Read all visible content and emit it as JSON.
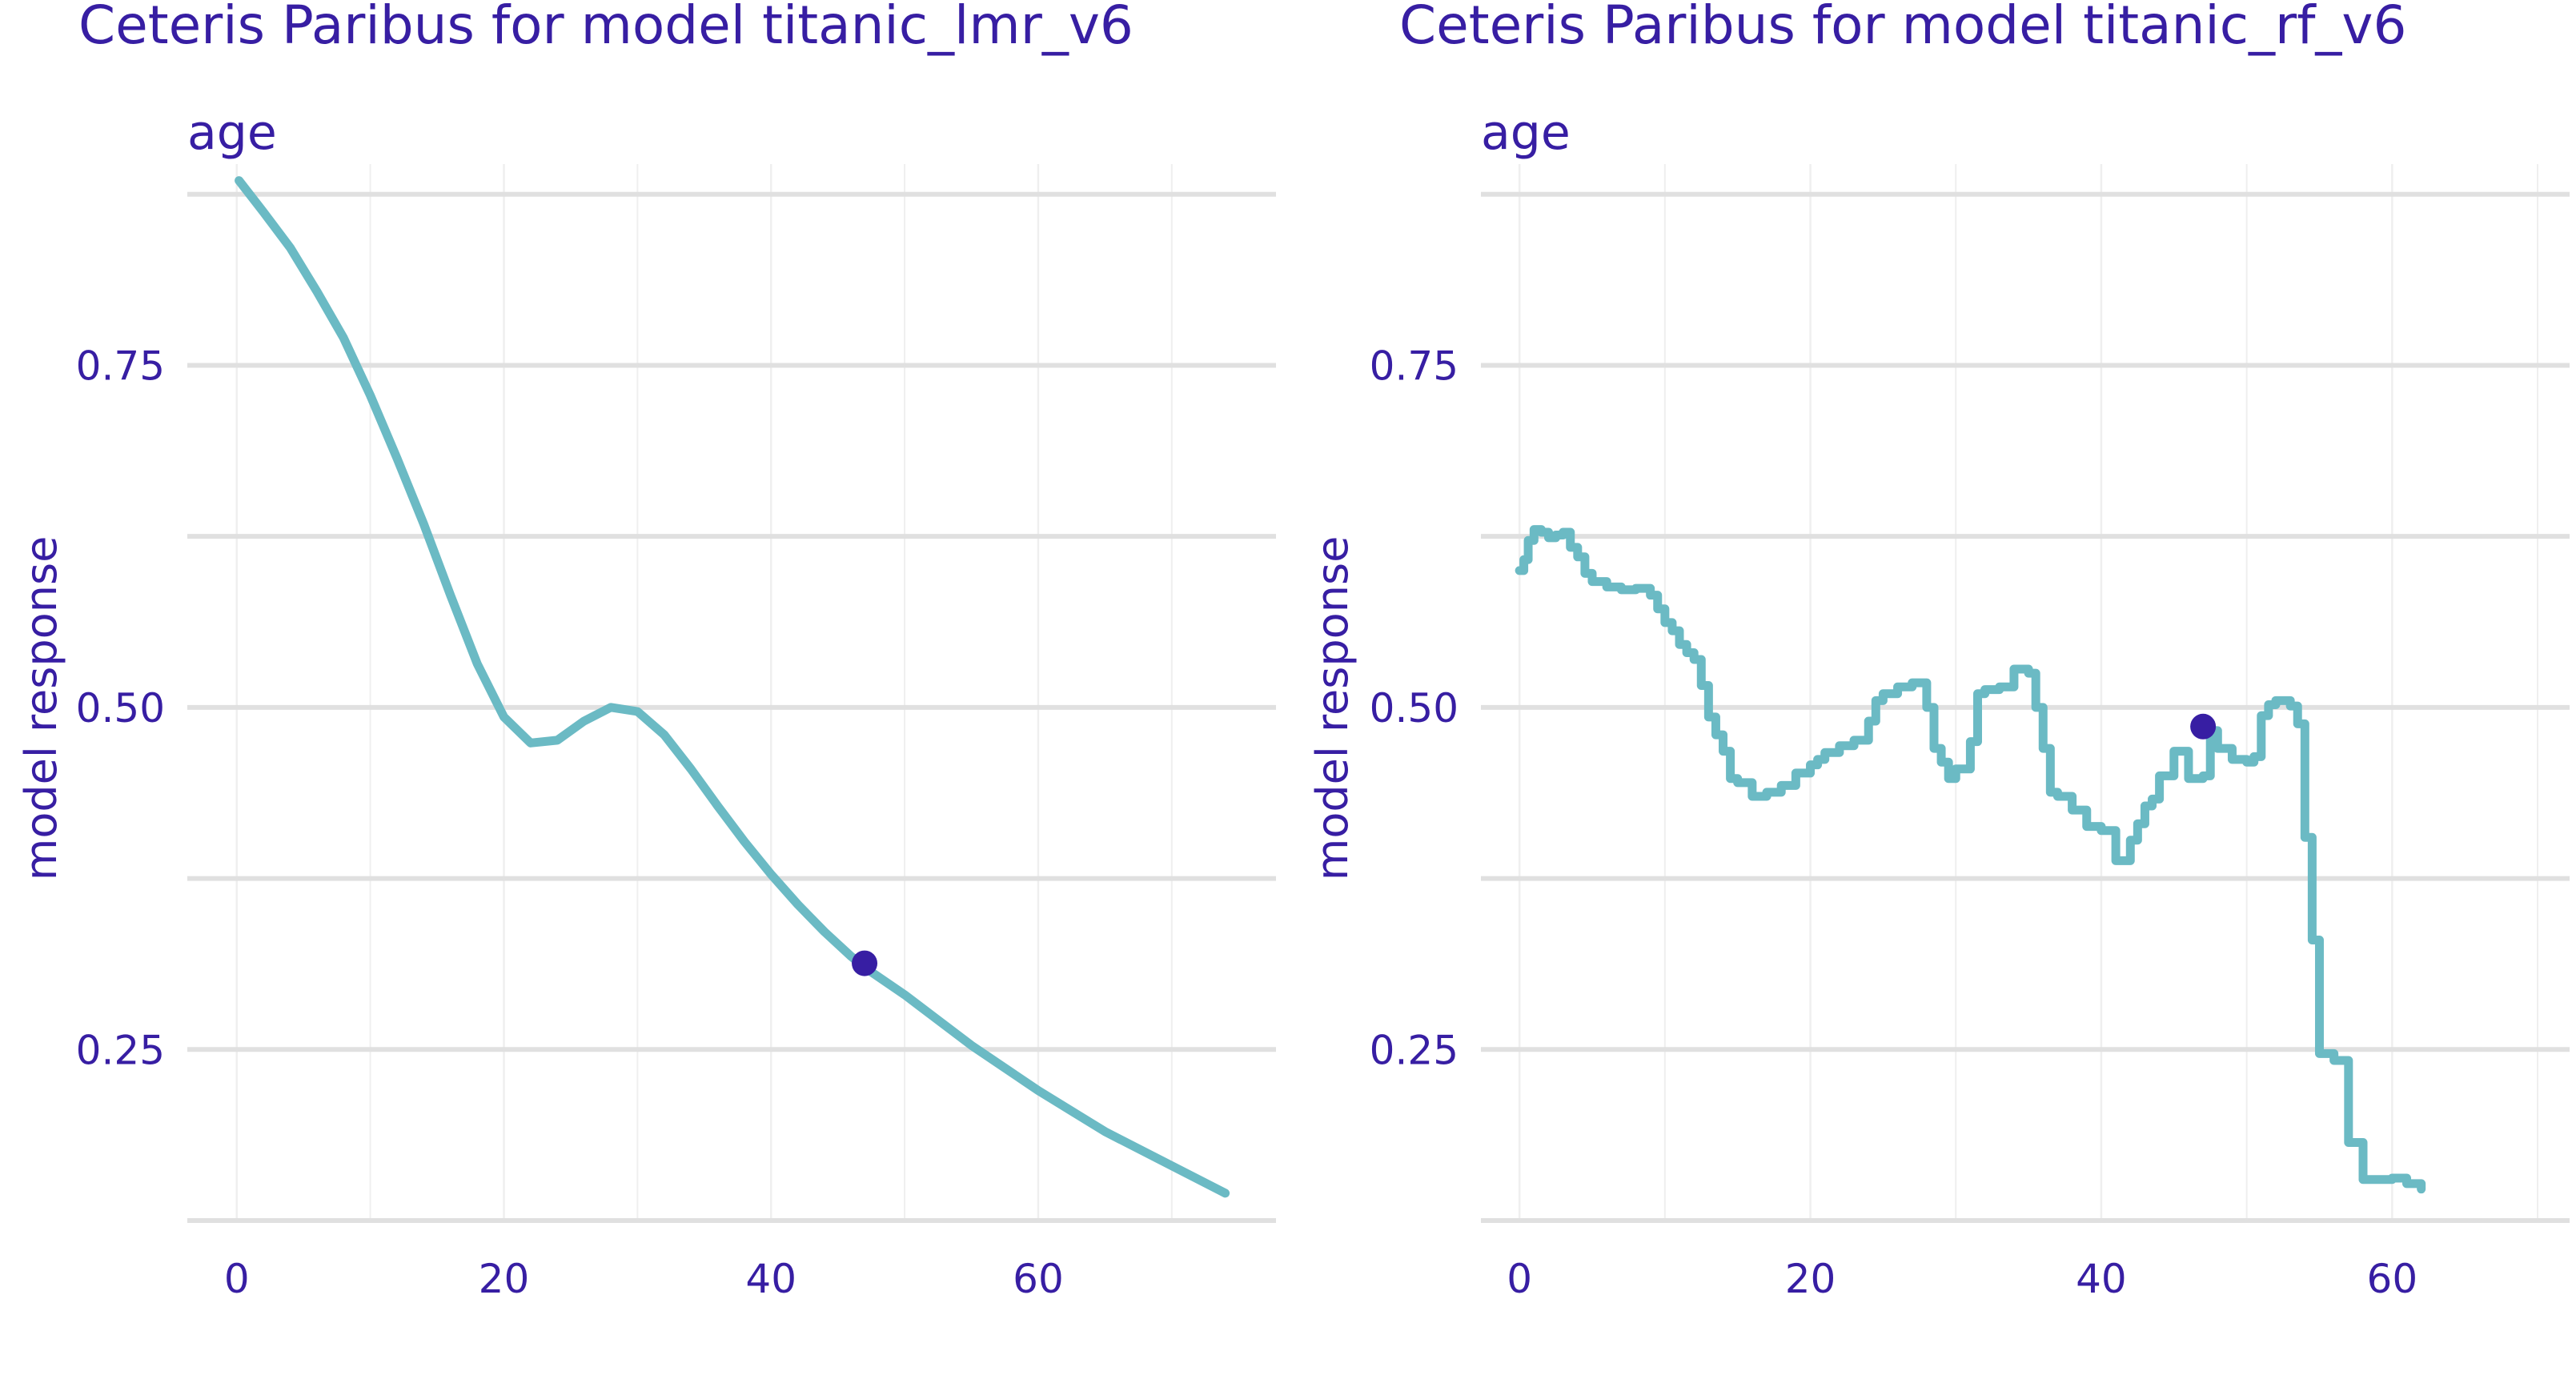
{
  "theme": {
    "text_color": "#371ea3",
    "line_color": "#6bbac4",
    "point_color": "#371ea3",
    "major_grid_color": "#e0e0e0",
    "minor_grid_color": "#efefef",
    "background": "#ffffff"
  },
  "chart_data": [
    {
      "type": "line",
      "title": "Ceteris Paribus for model titanic_lmr_v6",
      "subtitle": "age",
      "xlabel": "",
      "ylabel": "model response",
      "xlim": [
        -3.7,
        77.8
      ],
      "ylim": [
        0.125,
        0.9
      ],
      "x_ticks": [
        0,
        20,
        40,
        60
      ],
      "x_tick_labels": [
        "0",
        "20",
        "40",
        "60"
      ],
      "x_minor_gridlines": [
        10,
        30,
        50,
        70
      ],
      "y_ticks": [
        0.25,
        0.5,
        0.75
      ],
      "y_tick_labels": [
        "0.25",
        "0.50",
        "0.75"
      ],
      "y_minor_gridlines": [
        0.125,
        0.375,
        0.625,
        0.875
      ],
      "grid": true,
      "legend": "none",
      "series": [
        {
          "x": [
            0.17,
            2,
            4,
            6,
            8,
            10,
            12,
            14,
            16,
            18,
            20,
            22,
            24,
            26,
            28,
            30,
            32,
            34,
            36,
            38,
            40,
            42,
            44,
            46,
            47,
            50,
            55,
            60,
            65,
            70,
            74
          ],
          "y": [
            0.885,
            0.862,
            0.836,
            0.804,
            0.77,
            0.728,
            0.682,
            0.634,
            0.582,
            0.532,
            0.493,
            0.474,
            0.476,
            0.49,
            0.5,
            0.497,
            0.48,
            0.455,
            0.428,
            0.402,
            0.378,
            0.356,
            0.336,
            0.318,
            0.31,
            0.29,
            0.253,
            0.22,
            0.19,
            0.165,
            0.145
          ]
        }
      ],
      "observation": {
        "x": 47,
        "y": 0.313
      }
    },
    {
      "type": "line",
      "title": "Ceteris Paribus for model titanic_rf_v6",
      "subtitle": "age",
      "xlabel": "",
      "ylabel": "model response",
      "xlim": [
        -2.65,
        72.2
      ],
      "ylim": [
        0.125,
        0.9
      ],
      "x_ticks": [
        0,
        20,
        40,
        60
      ],
      "x_tick_labels": [
        "0",
        "20",
        "40",
        "60"
      ],
      "x_minor_gridlines": [
        10,
        30,
        50,
        70
      ],
      "y_ticks": [
        0.25,
        0.5,
        0.75
      ],
      "y_tick_labels": [
        "0.25",
        "0.50",
        "0.75"
      ],
      "y_minor_gridlines": [
        0.125,
        0.375,
        0.625,
        0.875
      ],
      "grid": true,
      "legend": "none",
      "series": [
        {
          "step": true,
          "x": [
            0,
            0.3,
            0.6,
            1,
            1.5,
            2,
            2.5,
            3,
            3.5,
            4,
            4.5,
            5,
            6,
            7,
            8,
            9,
            9.5,
            10,
            10.5,
            11,
            11.5,
            12,
            12.5,
            13,
            13.5,
            14,
            14.5,
            15,
            16,
            17,
            18,
            19,
            20,
            20.5,
            21,
            22,
            23,
            24,
            24.5,
            25,
            26,
            27,
            28,
            28.5,
            29,
            29.5,
            30,
            31,
            31.5,
            32,
            33,
            34,
            35,
            35.5,
            36,
            36.5,
            37,
            38,
            39,
            40,
            41,
            42,
            42.5,
            43,
            43.5,
            44,
            45,
            46,
            47,
            47.5,
            48,
            49,
            50,
            50.5,
            51,
            51.5,
            52,
            53,
            53.5,
            54,
            54.5,
            55,
            56,
            57,
            58,
            59,
            60,
            61,
            62
          ],
          "y": [
            0.6,
            0.608,
            0.622,
            0.63,
            0.628,
            0.624,
            0.626,
            0.628,
            0.617,
            0.61,
            0.598,
            0.592,
            0.588,
            0.586,
            0.587,
            0.582,
            0.572,
            0.562,
            0.556,
            0.546,
            0.54,
            0.535,
            0.516,
            0.493,
            0.48,
            0.468,
            0.448,
            0.445,
            0.435,
            0.438,
            0.443,
            0.452,
            0.458,
            0.462,
            0.467,
            0.472,
            0.476,
            0.49,
            0.505,
            0.51,
            0.515,
            0.518,
            0.5,
            0.47,
            0.46,
            0.448,
            0.455,
            0.475,
            0.51,
            0.513,
            0.515,
            0.528,
            0.525,
            0.5,
            0.47,
            0.438,
            0.435,
            0.425,
            0.413,
            0.41,
            0.388,
            0.403,
            0.415,
            0.428,
            0.433,
            0.45,
            0.468,
            0.448,
            0.45,
            0.483,
            0.47,
            0.462,
            0.46,
            0.464,
            0.494,
            0.502,
            0.505,
            0.501,
            0.488,
            0.405,
            0.33,
            0.247,
            0.242,
            0.182,
            0.155,
            0.155,
            0.156,
            0.152,
            0.148
          ]
        }
      ],
      "observation": {
        "x": 47,
        "y": 0.486
      }
    }
  ]
}
